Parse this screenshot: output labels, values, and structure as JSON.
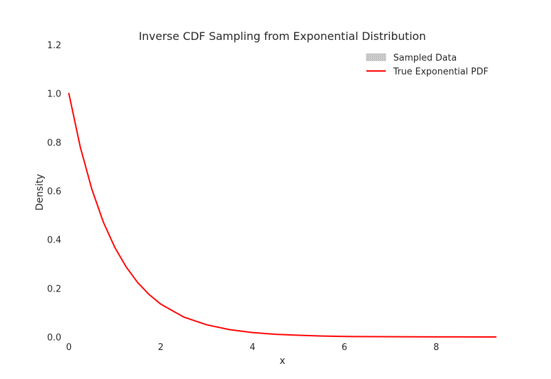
{
  "chart_data": {
    "type": "line",
    "title": "Inverse CDF Sampling from Exponential Distribution",
    "xlabel": "x",
    "ylabel": "Density",
    "xlim": [
      0,
      9.3
    ],
    "ylim": [
      0,
      1.2
    ],
    "xticks": [
      0,
      2,
      4,
      6,
      8
    ],
    "xtick_labels": [
      "0",
      "2",
      "4",
      "6",
      "8"
    ],
    "yticks": [
      0.0,
      0.2,
      0.4,
      0.6,
      0.8,
      1.0,
      1.2
    ],
    "ytick_labels": [
      "0.0",
      "0.2",
      "0.4",
      "0.6",
      "0.8",
      "1.0",
      "1.2"
    ],
    "grid": false,
    "legend_position": "top-right",
    "legend": [
      {
        "label": "Sampled Data",
        "kind": "patch",
        "color": "#bfbfbf"
      },
      {
        "label": "True Exponential PDF",
        "kind": "line",
        "color": "#ff0000"
      }
    ],
    "series": [
      {
        "name": "True Exponential PDF",
        "color": "#ff0000",
        "x": [
          0,
          0.25,
          0.5,
          0.75,
          1.0,
          1.25,
          1.5,
          1.75,
          2.0,
          2.5,
          3.0,
          3.5,
          4.0,
          4.5,
          5.0,
          5.5,
          6.0,
          6.5,
          7.0,
          7.5,
          8.0,
          8.5,
          9.0,
          9.3
        ],
        "values": [
          1.0,
          0.779,
          0.607,
          0.472,
          0.368,
          0.287,
          0.223,
          0.174,
          0.135,
          0.082,
          0.05,
          0.03,
          0.018,
          0.011,
          0.007,
          0.004,
          0.002,
          0.0015,
          0.0009,
          0.0006,
          0.0003,
          0.0002,
          0.0001,
          0.0001
        ]
      }
    ]
  }
}
